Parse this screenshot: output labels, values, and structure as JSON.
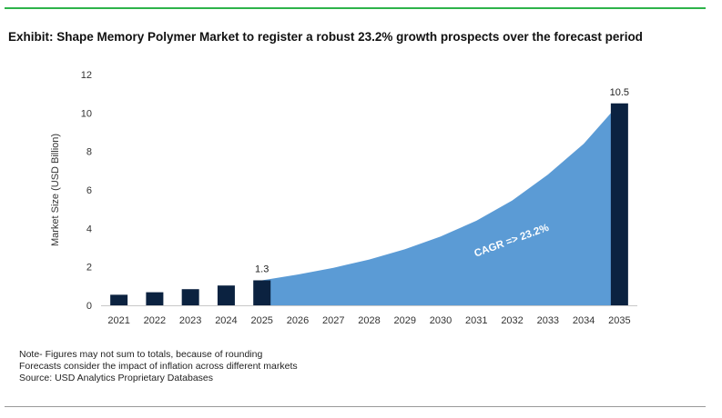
{
  "title": "Exhibit: Shape Memory Polymer Market to register a robust 23.2% growth prospects over the forecast period",
  "colors": {
    "bar": "#0b2240",
    "area": "#5b9bd5",
    "rule_top": "#2db34a",
    "rule_bottom": "#9a9a9a"
  },
  "notes": [
    "Note- Figures may not sum to totals, because of rounding",
    "Forecasts consider the impact of inflation across different markets",
    "Source: USD Analytics Proprietary Databases"
  ],
  "chart_data": {
    "type": "bar",
    "categories": [
      "2021",
      "2022",
      "2023",
      "2024",
      "2025",
      "2026",
      "2027",
      "2028",
      "2029",
      "2030",
      "2031",
      "2032",
      "2033",
      "2034",
      "2035"
    ],
    "bars": [
      {
        "x": "2021",
        "value": 0.55
      },
      {
        "x": "2022",
        "value": 0.68
      },
      {
        "x": "2023",
        "value": 0.84
      },
      {
        "x": "2024",
        "value": 1.03
      },
      {
        "x": "2025",
        "value": 1.3,
        "label": "1.3"
      },
      {
        "x": "2035",
        "value": 10.5,
        "label": "10.5"
      }
    ],
    "area_series": {
      "x": [
        "2025",
        "2026",
        "2027",
        "2028",
        "2029",
        "2030",
        "2031",
        "2032",
        "2033",
        "2034",
        "2035"
      ],
      "values": [
        1.3,
        1.6,
        1.95,
        2.38,
        2.92,
        3.58,
        4.4,
        5.45,
        6.8,
        8.4,
        10.5
      ]
    },
    "annotation": "CAGR => 23.2%",
    "ylabel": "Market Size (USD Billion)",
    "xlabel": "",
    "ylim": [
      0,
      12
    ],
    "yticks": [
      0,
      2,
      4,
      6,
      8,
      10,
      12
    ],
    "grid": false
  }
}
